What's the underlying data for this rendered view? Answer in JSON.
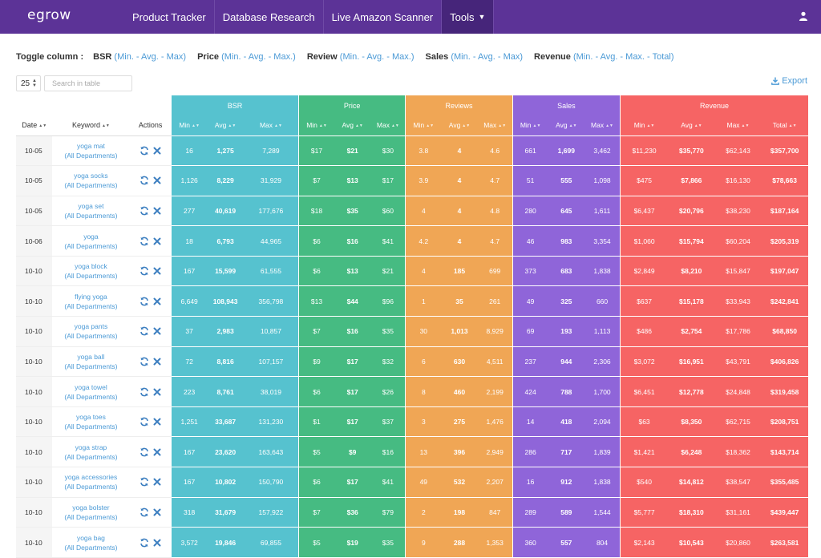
{
  "app": {
    "logo": "egrow",
    "nav": [
      {
        "label": "Product Tracker"
      },
      {
        "label": "Database Research"
      },
      {
        "label": "Live Amazon Scanner"
      },
      {
        "label": "Tools",
        "active": true
      }
    ],
    "user_icon": "user-icon"
  },
  "toggle": {
    "label": "Toggle column :",
    "groups": [
      {
        "name": "BSR",
        "links": [
          "Min.",
          "Avg.",
          "Max"
        ]
      },
      {
        "name": "Price",
        "links": [
          "Min.",
          "Avg.",
          "Max."
        ]
      },
      {
        "name": "Review",
        "links": [
          "Min.",
          "Avg.",
          "Max."
        ]
      },
      {
        "name": "Sales",
        "links": [
          "Min.",
          "Avg.",
          "Max"
        ]
      },
      {
        "name": "Revenue",
        "links": [
          "Min.",
          "Avg.",
          "Max.",
          "Total"
        ]
      }
    ]
  },
  "controls": {
    "page_size": "25",
    "search_placeholder": "Search in table",
    "export_label": "Export"
  },
  "table": {
    "left_headers": [
      "Date",
      "Keyword",
      "Actions"
    ],
    "groups": [
      {
        "label": "BSR",
        "cols": [
          "Min",
          "Avg",
          "Max"
        ]
      },
      {
        "label": "Price",
        "cols": [
          "Min",
          "Avg",
          "Max"
        ]
      },
      {
        "label": "Reviews",
        "cols": [
          "Min",
          "Avg",
          "Max"
        ]
      },
      {
        "label": "Sales",
        "cols": [
          "Min",
          "Avg",
          "Max"
        ]
      },
      {
        "label": "Revenue",
        "cols": [
          "Min",
          "Avg",
          "Max",
          "Total"
        ]
      }
    ],
    "department_label": "(All Departments)",
    "rows": [
      {
        "date": "10-05",
        "keyword": "yoga mat",
        "bsr": [
          "16",
          "1,275",
          "7,289"
        ],
        "price": [
          "$17",
          "$21",
          "$30"
        ],
        "reviews": [
          "3.8",
          "4",
          "4.6"
        ],
        "sales": [
          "661",
          "1,699",
          "3,462"
        ],
        "revenue": [
          "$11,230",
          "$35,770",
          "$62,143",
          "$357,700"
        ]
      },
      {
        "date": "10-05",
        "keyword": "yoga socks",
        "bsr": [
          "1,126",
          "8,229",
          "31,929"
        ],
        "price": [
          "$7",
          "$13",
          "$17"
        ],
        "reviews": [
          "3.9",
          "4",
          "4.7"
        ],
        "sales": [
          "51",
          "555",
          "1,098"
        ],
        "revenue": [
          "$475",
          "$7,866",
          "$16,130",
          "$78,663"
        ]
      },
      {
        "date": "10-05",
        "keyword": "yoga set",
        "bsr": [
          "277",
          "40,619",
          "177,676"
        ],
        "price": [
          "$18",
          "$35",
          "$60"
        ],
        "reviews": [
          "4",
          "4",
          "4.8"
        ],
        "sales": [
          "280",
          "645",
          "1,611"
        ],
        "revenue": [
          "$6,437",
          "$20,796",
          "$38,230",
          "$187,164"
        ]
      },
      {
        "date": "10-06",
        "keyword": "yoga",
        "bsr": [
          "18",
          "6,793",
          "44,965"
        ],
        "price": [
          "$6",
          "$16",
          "$41"
        ],
        "reviews": [
          "4.2",
          "4",
          "4.7"
        ],
        "sales": [
          "46",
          "983",
          "3,354"
        ],
        "revenue": [
          "$1,060",
          "$15,794",
          "$60,204",
          "$205,319"
        ]
      },
      {
        "date": "10-10",
        "keyword": "yoga block",
        "bsr": [
          "167",
          "15,599",
          "61,555"
        ],
        "price": [
          "$6",
          "$13",
          "$21"
        ],
        "reviews": [
          "4",
          "185",
          "699"
        ],
        "sales": [
          "373",
          "683",
          "1,838"
        ],
        "revenue": [
          "$2,849",
          "$8,210",
          "$15,847",
          "$197,047"
        ]
      },
      {
        "date": "10-10",
        "keyword": "flying yoga",
        "bsr": [
          "6,649",
          "108,943",
          "356,798"
        ],
        "price": [
          "$13",
          "$44",
          "$96"
        ],
        "reviews": [
          "1",
          "35",
          "261"
        ],
        "sales": [
          "49",
          "325",
          "660"
        ],
        "revenue": [
          "$637",
          "$15,178",
          "$33,943",
          "$242,841"
        ]
      },
      {
        "date": "10-10",
        "keyword": "yoga pants",
        "bsr": [
          "37",
          "2,983",
          "10,857"
        ],
        "price": [
          "$7",
          "$16",
          "$35"
        ],
        "reviews": [
          "30",
          "1,013",
          "8,929"
        ],
        "sales": [
          "69",
          "193",
          "1,113"
        ],
        "revenue": [
          "$486",
          "$2,754",
          "$17,786",
          "$68,850"
        ]
      },
      {
        "date": "10-10",
        "keyword": "yoga ball",
        "bsr": [
          "72",
          "8,816",
          "107,157"
        ],
        "price": [
          "$9",
          "$17",
          "$32"
        ],
        "reviews": [
          "6",
          "630",
          "4,511"
        ],
        "sales": [
          "237",
          "944",
          "2,306"
        ],
        "revenue": [
          "$3,072",
          "$16,951",
          "$43,791",
          "$406,826"
        ]
      },
      {
        "date": "10-10",
        "keyword": "yoga towel",
        "bsr": [
          "223",
          "8,761",
          "38,019"
        ],
        "price": [
          "$6",
          "$17",
          "$26"
        ],
        "reviews": [
          "8",
          "460",
          "2,199"
        ],
        "sales": [
          "424",
          "788",
          "1,700"
        ],
        "revenue": [
          "$6,451",
          "$12,778",
          "$24,848",
          "$319,458"
        ]
      },
      {
        "date": "10-10",
        "keyword": "yoga toes",
        "bsr": [
          "1,251",
          "33,687",
          "131,230"
        ],
        "price": [
          "$1",
          "$17",
          "$37"
        ],
        "reviews": [
          "3",
          "275",
          "1,476"
        ],
        "sales": [
          "14",
          "418",
          "2,094"
        ],
        "revenue": [
          "$63",
          "$8,350",
          "$62,715",
          "$208,751"
        ]
      },
      {
        "date": "10-10",
        "keyword": "yoga strap",
        "bsr": [
          "167",
          "23,620",
          "163,643"
        ],
        "price": [
          "$5",
          "$9",
          "$16"
        ],
        "reviews": [
          "13",
          "396",
          "2,949"
        ],
        "sales": [
          "286",
          "717",
          "1,839"
        ],
        "revenue": [
          "$1,421",
          "$6,248",
          "$18,362",
          "$143,714"
        ]
      },
      {
        "date": "10-10",
        "keyword": "yoga accessories",
        "bsr": [
          "167",
          "10,802",
          "150,790"
        ],
        "price": [
          "$6",
          "$17",
          "$41"
        ],
        "reviews": [
          "49",
          "532",
          "2,207"
        ],
        "sales": [
          "16",
          "912",
          "1,838"
        ],
        "revenue": [
          "$540",
          "$14,812",
          "$38,547",
          "$355,485"
        ]
      },
      {
        "date": "10-10",
        "keyword": "yoga bolster",
        "bsr": [
          "318",
          "31,679",
          "157,922"
        ],
        "price": [
          "$7",
          "$36",
          "$79"
        ],
        "reviews": [
          "2",
          "198",
          "847"
        ],
        "sales": [
          "289",
          "589",
          "1,544"
        ],
        "revenue": [
          "$5,777",
          "$18,310",
          "$31,161",
          "$439,447"
        ]
      },
      {
        "date": "10-10",
        "keyword": "yoga bag",
        "bsr": [
          "3,572",
          "19,846",
          "69,855"
        ],
        "price": [
          "$5",
          "$19",
          "$35"
        ],
        "reviews": [
          "9",
          "288",
          "1,353"
        ],
        "sales": [
          "360",
          "557",
          "804"
        ],
        "revenue": [
          "$2,143",
          "$10,543",
          "$20,860",
          "$263,581"
        ]
      }
    ]
  },
  "colors": {
    "nav": "#5c3397",
    "bsr": "#56c2cf",
    "price": "#46bb82",
    "reviews": "#f0a655",
    "sales": "#8f65d9",
    "revenue": "#f66464",
    "link": "#4b9ad6"
  }
}
